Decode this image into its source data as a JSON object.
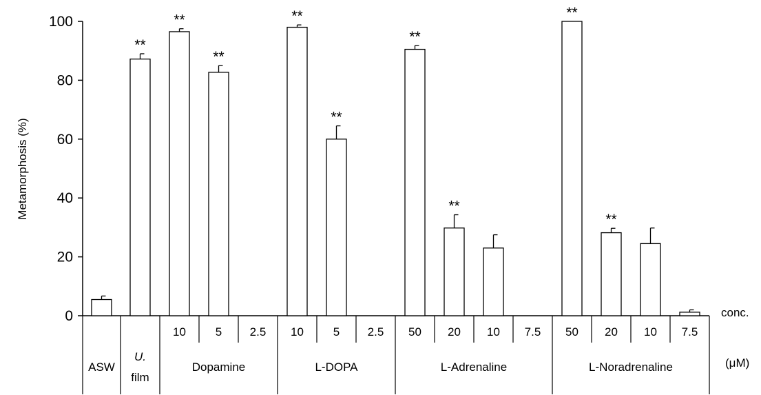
{
  "chart_data": {
    "type": "bar",
    "ylabel": "Metamorphosis (%)",
    "ylim": [
      0,
      100
    ],
    "yticks": [
      0,
      20,
      40,
      60,
      80,
      100
    ],
    "grid": false,
    "bar_fill": "#ffffff",
    "bar_stroke": "#000000",
    "conc_label": "conc.",
    "unit_label": "(μM)",
    "groups": [
      {
        "name": "ASW"
      },
      {
        "name": "film",
        "name_italic": "U."
      },
      {
        "name": "Dopamine"
      },
      {
        "name": "L-DOPA"
      },
      {
        "name": "L-Adrenaline"
      },
      {
        "name": "L-Noradrenaline"
      }
    ],
    "bars": [
      {
        "group": 0,
        "conc": "",
        "value": 5.5,
        "error": 1.2,
        "sig": ""
      },
      {
        "group": 1,
        "conc": "",
        "value": 87.2,
        "error": 1.8,
        "sig": "**"
      },
      {
        "group": 2,
        "conc": "10",
        "value": 96.5,
        "error": 1.0,
        "sig": "**"
      },
      {
        "group": 2,
        "conc": "5",
        "value": 82.7,
        "error": 2.3,
        "sig": "**"
      },
      {
        "group": 2,
        "conc": "2.5",
        "value": 0,
        "error": 0,
        "sig": ""
      },
      {
        "group": 3,
        "conc": "10",
        "value": 98.0,
        "error": 0.8,
        "sig": "**"
      },
      {
        "group": 3,
        "conc": "5",
        "value": 60.0,
        "error": 4.5,
        "sig": "**"
      },
      {
        "group": 3,
        "conc": "2.5",
        "value": 0,
        "error": 0,
        "sig": ""
      },
      {
        "group": 4,
        "conc": "50",
        "value": 90.5,
        "error": 1.3,
        "sig": "**"
      },
      {
        "group": 4,
        "conc": "20",
        "value": 29.8,
        "error": 4.5,
        "sig": "**"
      },
      {
        "group": 4,
        "conc": "10",
        "value": 23.0,
        "error": 4.5,
        "sig": ""
      },
      {
        "group": 4,
        "conc": "7.5",
        "value": 0,
        "error": 0,
        "sig": ""
      },
      {
        "group": 5,
        "conc": "50",
        "value": 100.0,
        "error": 0,
        "sig": "**"
      },
      {
        "group": 5,
        "conc": "20",
        "value": 28.2,
        "error": 1.5,
        "sig": "**"
      },
      {
        "group": 5,
        "conc": "10",
        "value": 24.5,
        "error": 5.3,
        "sig": ""
      },
      {
        "group": 5,
        "conc": "7.5",
        "value": 1.2,
        "error": 0.8,
        "sig": ""
      }
    ]
  }
}
